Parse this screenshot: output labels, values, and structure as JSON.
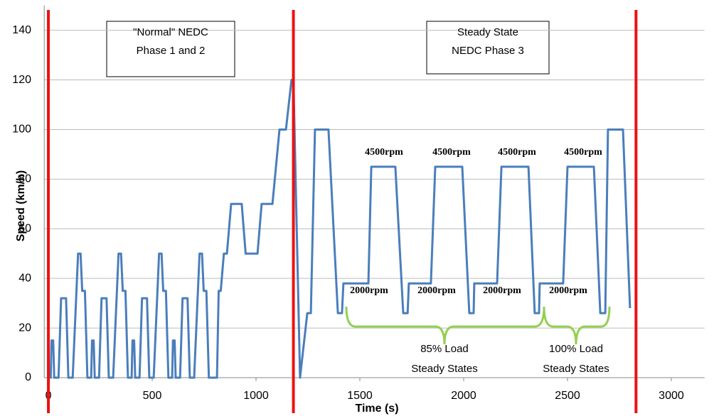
{
  "chart_data": {
    "type": "line",
    "x_label": "Time (s)",
    "y_label": "Speed (km/h)",
    "color": "#4a7ebb",
    "xlim": [
      -20,
      3160
    ],
    "ylim": [
      0,
      150
    ],
    "xticks": [
      0,
      500,
      1000,
      1500,
      2000,
      2500,
      3000
    ],
    "yticks": [
      0,
      20,
      40,
      60,
      80,
      100,
      120,
      140
    ],
    "grid": true,
    "vlines": [
      0,
      1180,
      2830
    ],
    "vline_color": "#ee1111",
    "x": [
      0,
      11,
      15,
      23,
      28,
      49,
      61,
      85,
      96,
      117,
      143,
      155,
      163,
      176,
      188,
      195,
      206,
      210,
      218,
      223,
      244,
      256,
      280,
      291,
      312,
      338,
      350,
      358,
      371,
      383,
      390,
      401,
      405,
      413,
      418,
      439,
      451,
      475,
      486,
      507,
      533,
      545,
      553,
      566,
      578,
      585,
      596,
      600,
      608,
      613,
      634,
      646,
      670,
      681,
      702,
      728,
      740,
      748,
      761,
      773,
      812,
      820,
      830,
      845,
      860,
      880,
      931,
      950,
      1007,
      1027,
      1079,
      1113,
      1144,
      1171,
      1180,
      1212,
      1247,
      1264,
      1284,
      1349,
      1394,
      1414,
      1421,
      1541,
      1555,
      1671,
      1709,
      1730,
      1736,
      1842,
      1863,
      1993,
      2027,
      2048,
      2051,
      2161,
      2182,
      2312,
      2342,
      2363,
      2366,
      2479,
      2500,
      2627,
      2658,
      2682,
      2695,
      2767,
      2801
    ],
    "values": [
      0,
      0,
      15,
      15,
      0,
      0,
      32,
      32,
      0,
      0,
      50,
      50,
      35,
      35,
      0,
      0,
      0,
      15,
      15,
      0,
      0,
      32,
      32,
      0,
      0,
      50,
      50,
      35,
      35,
      0,
      0,
      0,
      15,
      15,
      0,
      0,
      32,
      32,
      0,
      0,
      50,
      50,
      35,
      35,
      0,
      0,
      0,
      15,
      15,
      0,
      0,
      32,
      32,
      0,
      0,
      50,
      50,
      35,
      35,
      0,
      0,
      35,
      35,
      50,
      50,
      70,
      70,
      50,
      50,
      70,
      70,
      100,
      100,
      120,
      120,
      0,
      26,
      26,
      100,
      100,
      26,
      26,
      38,
      38,
      85,
      85,
      26,
      26,
      38,
      38,
      85,
      85,
      26,
      26,
      38,
      38,
      85,
      85,
      26,
      26,
      38,
      38,
      85,
      85,
      26,
      26,
      100,
      100,
      28
    ],
    "boxes": [
      [
        "\"Normal\" NEDC",
        "Phase 1 and 2"
      ],
      [
        "Steady State",
        "NEDC Phase 3"
      ]
    ],
    "high_labels": [
      "4500rpm",
      "4500rpm",
      "4500rpm",
      "4500rpm"
    ],
    "low_labels": [
      "2000rpm",
      "2000rpm",
      "2000rpm",
      "2000rpm"
    ],
    "brace_labels": [
      [
        "85% Load",
        "Steady States"
      ],
      [
        "100% Load",
        "Steady States"
      ]
    ],
    "brace_color": "#92d050"
  }
}
